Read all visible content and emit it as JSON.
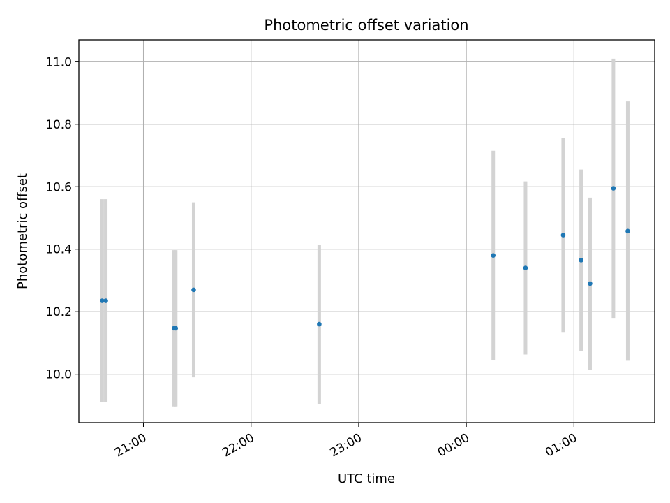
{
  "chart_data": {
    "type": "scatter",
    "title": "Photometric offset variation",
    "xlabel": "UTC time",
    "ylabel": "Photometric offset",
    "grid": true,
    "legend": "none",
    "x_unit": "UTC time (HH:MM)",
    "xlim": [
      "20:24",
      "01:45"
    ],
    "ylim": [
      9.845,
      11.07
    ],
    "x_ticks": [
      "21:00",
      "22:00",
      "23:00",
      "00:00",
      "01:00"
    ],
    "y_ticks": [
      "10.0",
      "10.2",
      "10.4",
      "10.6",
      "10.8",
      "11.0"
    ],
    "colors": {
      "marker": "#1f77b4",
      "errorbar": "#d3d3d3",
      "grid": "#b0b0b0"
    },
    "points": [
      {
        "time": "20:37",
        "value": 10.235,
        "error": 0.325
      },
      {
        "time": "20:39",
        "value": 10.235,
        "error": 0.325
      },
      {
        "time": "21:17",
        "value": 10.147,
        "error": 0.25
      },
      {
        "time": "21:18",
        "value": 10.147,
        "error": 0.25
      },
      {
        "time": "21:28",
        "value": 10.27,
        "error": 0.28
      },
      {
        "time": "22:38",
        "value": 10.16,
        "error": 0.255
      },
      {
        "time": "00:15",
        "value": 10.38,
        "error": 0.335
      },
      {
        "time": "00:33",
        "value": 10.34,
        "error": 0.277
      },
      {
        "time": "00:54",
        "value": 10.445,
        "error": 0.31
      },
      {
        "time": "01:04",
        "value": 10.365,
        "error": 0.29
      },
      {
        "time": "01:09",
        "value": 10.29,
        "error": 0.275
      },
      {
        "time": "01:22",
        "value": 10.595,
        "error": 0.415
      },
      {
        "time": "01:30",
        "value": 10.458,
        "error": 0.415
      }
    ]
  }
}
